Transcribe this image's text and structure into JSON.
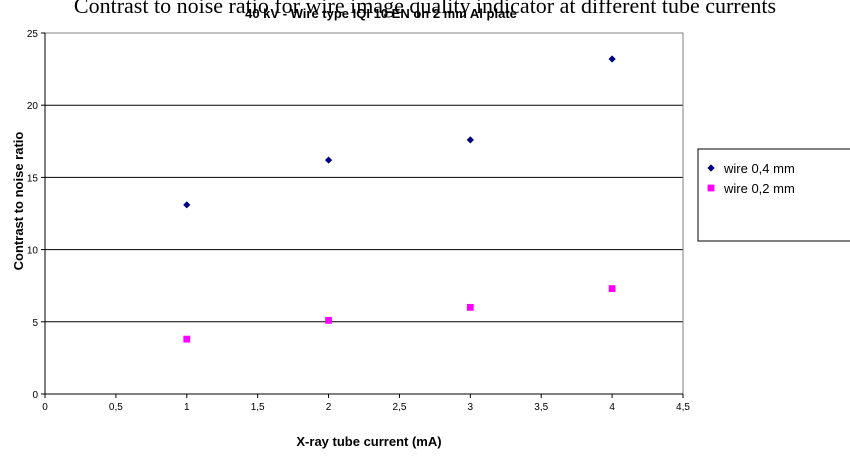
{
  "chart_data": {
    "type": "scatter",
    "title_partial": "Contrast to noise ratio for wire image quality indicator at different tube currents",
    "title": "40 kV - Wire type IQI 10 EN on 2 mm Al plate",
    "xlabel": "X-ray tube current (mA)",
    "ylabel": "Contrast to noise ratio",
    "xlim": [
      0,
      4.5
    ],
    "ylim": [
      0,
      25
    ],
    "x_ticks": [
      "0",
      "0,5",
      "1",
      "1,5",
      "2",
      "2,5",
      "3",
      "3,5",
      "4",
      "4,5"
    ],
    "y_ticks": [
      "0",
      "5",
      "10",
      "15",
      "20",
      "25"
    ],
    "grid": "horizontal",
    "legend_position": "right",
    "series": [
      {
        "name": "wire 0,4 mm",
        "color": "#000080",
        "marker": "diamond",
        "x": [
          1,
          2,
          3,
          4
        ],
        "y": [
          13.1,
          16.2,
          17.6,
          23.2
        ]
      },
      {
        "name": "wire 0,2 mm",
        "color": "#ff00ff",
        "marker": "square",
        "x": [
          1,
          2,
          3,
          4
        ],
        "y": [
          3.8,
          5.1,
          6.0,
          7.3
        ]
      }
    ]
  }
}
